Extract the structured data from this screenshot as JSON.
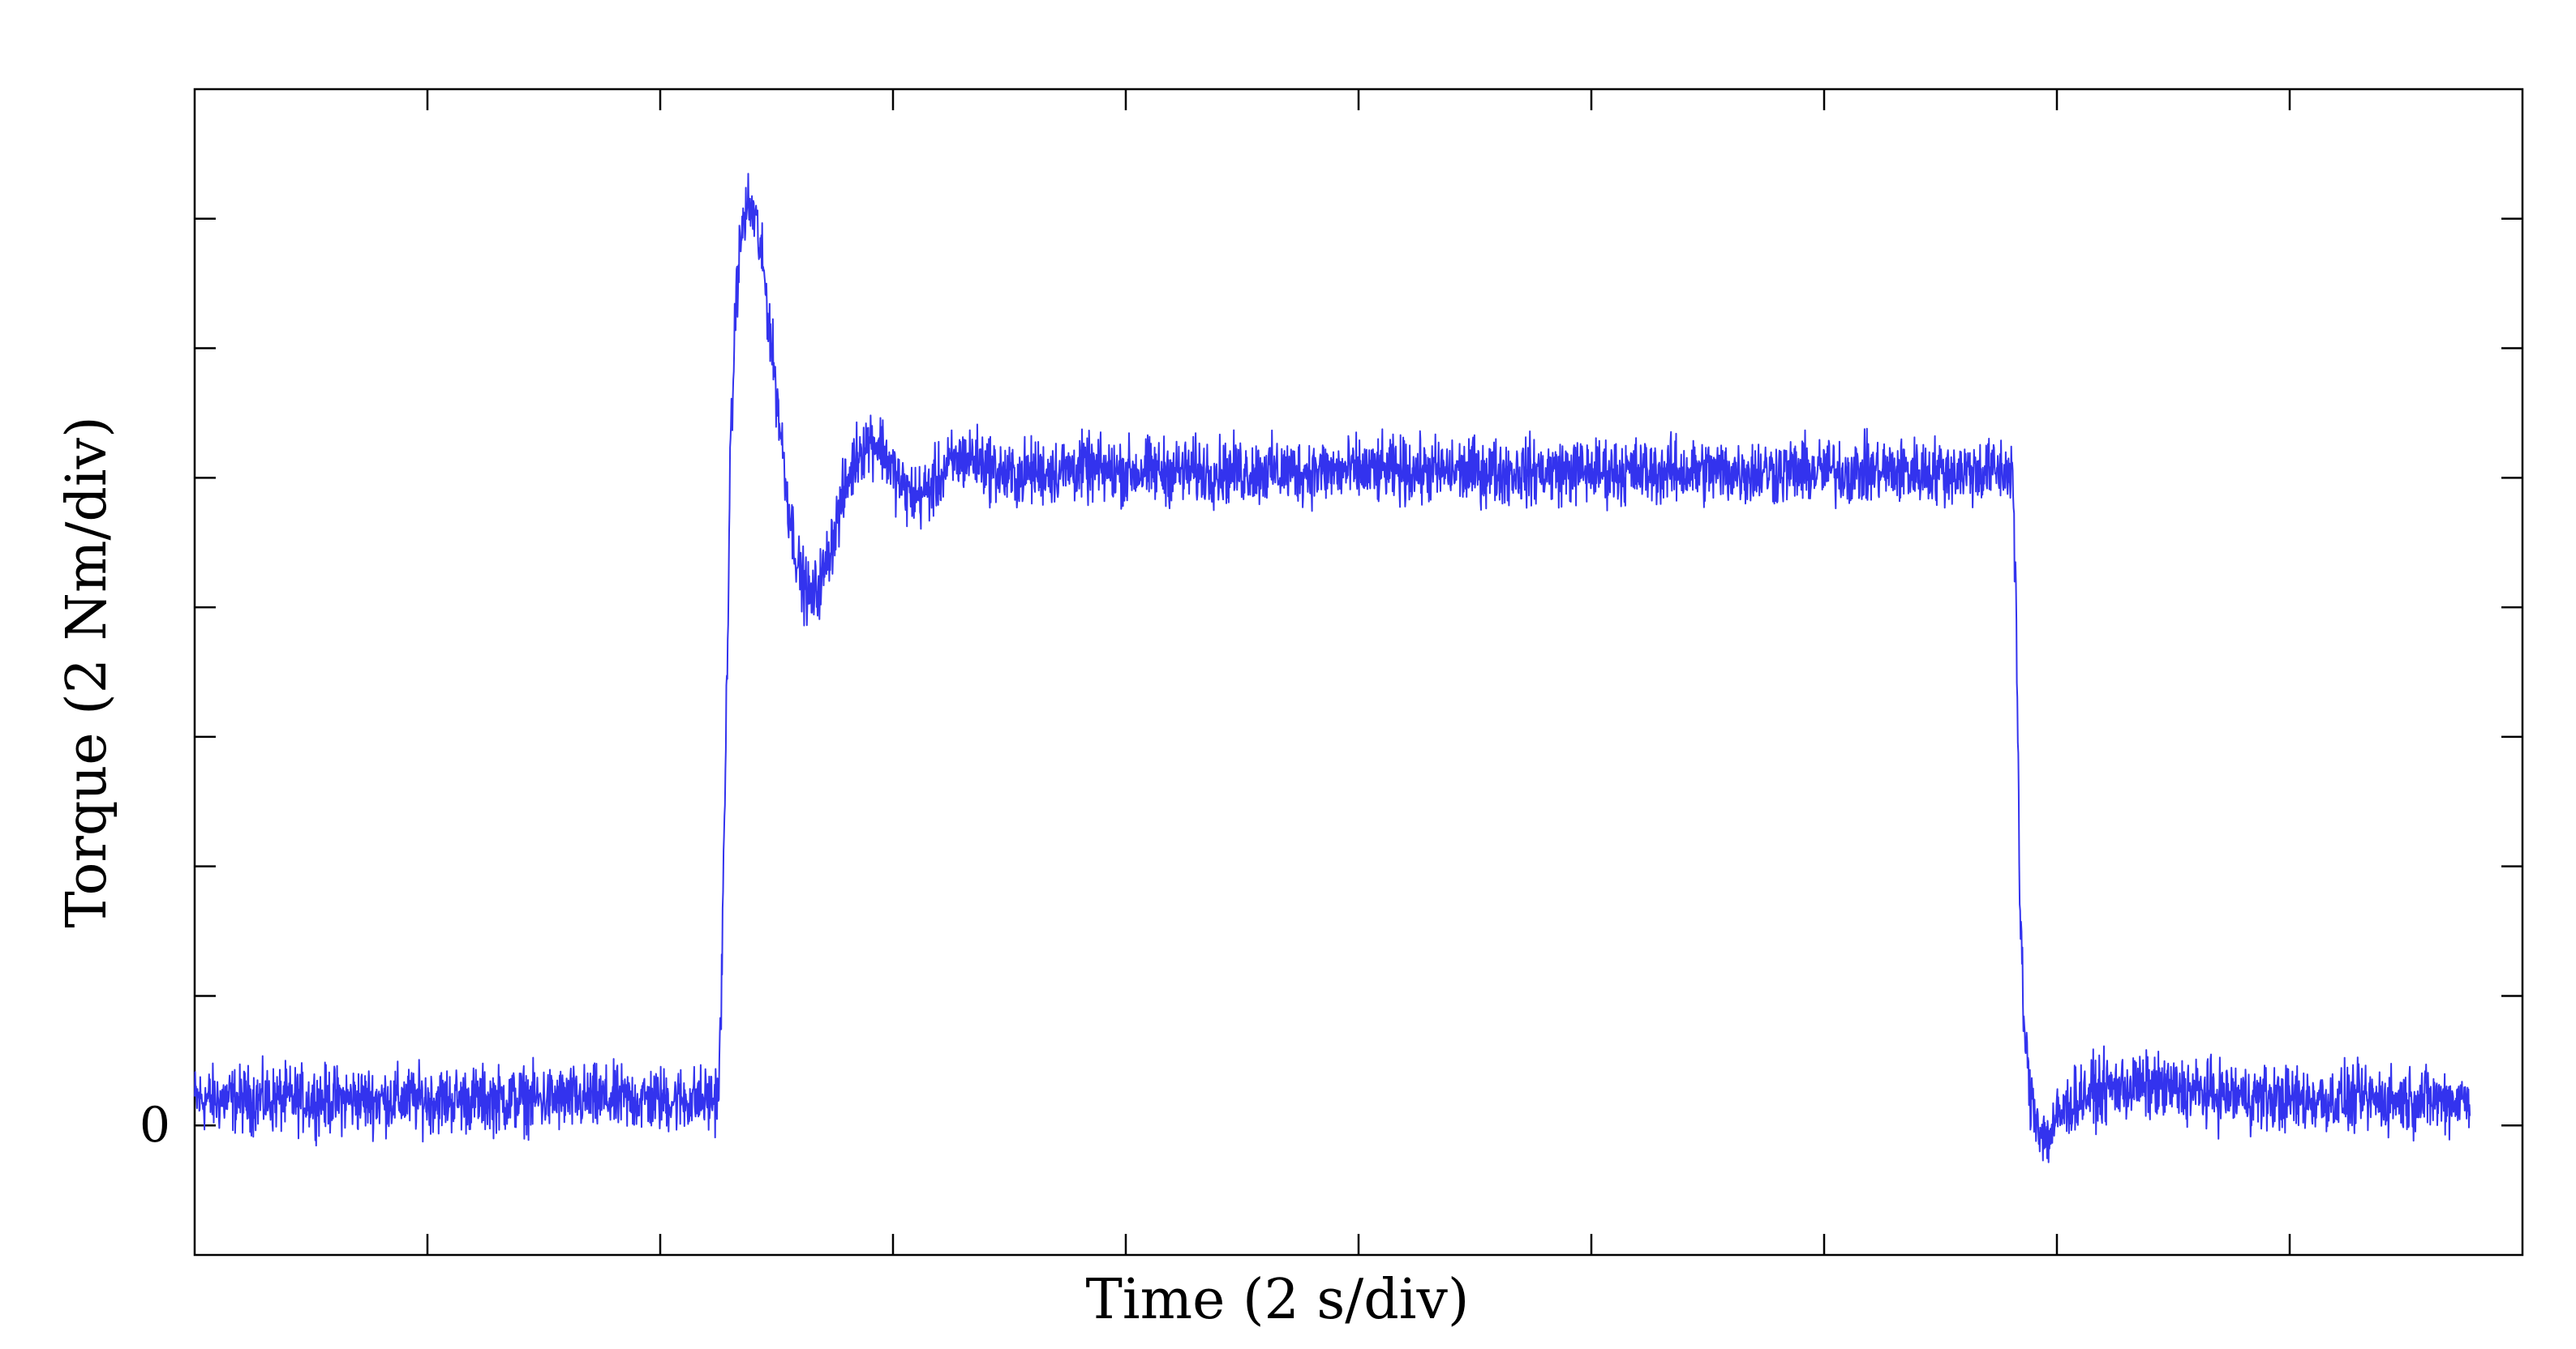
{
  "chart_data": {
    "type": "line",
    "title": "",
    "xlabel": "Time (2 s/div)",
    "ylabel": "Torque (2 Nm/div)",
    "xlim": [
      0,
      20
    ],
    "ylim": [
      -2,
      16
    ],
    "x_divisions": 10,
    "y_divisions": 9,
    "y_tick_labels": [
      {
        "value": 0,
        "label": "0"
      }
    ],
    "grid": false,
    "legend": "none",
    "series": [
      {
        "color": "#3333ee",
        "x": [
          0.0,
          0.5,
          1.0,
          2.0,
          3.0,
          4.0,
          4.45,
          4.5,
          4.52,
          4.56,
          4.6,
          4.65,
          4.7,
          4.75,
          4.82,
          4.9,
          5.0,
          5.1,
          5.2,
          5.3,
          5.4,
          5.5,
          5.6,
          5.7,
          5.8,
          5.9,
          6.0,
          6.1,
          6.2,
          6.3,
          6.4,
          6.5,
          6.6,
          6.7,
          6.8,
          6.9,
          7.0,
          7.2,
          7.4,
          7.6,
          7.8,
          8.0,
          8.4,
          8.8,
          9.2,
          9.6,
          10.0,
          10.5,
          11.0,
          11.5,
          12.0,
          12.5,
          13.0,
          13.5,
          14.0,
          14.5,
          15.0,
          15.3,
          15.4,
          15.55,
          15.62,
          15.65,
          15.68,
          15.72,
          15.76,
          15.8,
          15.85,
          15.9,
          15.95,
          16.0,
          16.1,
          16.2,
          16.4,
          16.6,
          16.8,
          17.0,
          17.3,
          17.6,
          18.0,
          18.4,
          18.8,
          19.2,
          19.55
        ],
        "y": [
          0.4,
          0.4,
          0.4,
          0.4,
          0.4,
          0.4,
          0.4,
          0.5,
          1.5,
          5.5,
          10.0,
          12.8,
          13.8,
          14.2,
          14.0,
          13.0,
          11.3,
          9.6,
          8.5,
          8.1,
          8.5,
          9.2,
          9.9,
          10.4,
          10.6,
          10.5,
          10.1,
          9.8,
          9.7,
          9.8,
          10.0,
          10.2,
          10.3,
          10.3,
          10.2,
          10.1,
          10.0,
          10.1,
          10.1,
          10.15,
          10.1,
          10.1,
          10.1,
          10.1,
          10.1,
          10.1,
          10.1,
          10.1,
          10.1,
          10.1,
          10.1,
          10.1,
          10.1,
          10.1,
          10.1,
          10.1,
          10.1,
          10.1,
          10.1,
          10.1,
          10.1,
          8.0,
          3.5,
          1.5,
          0.6,
          0.3,
          0.0,
          -0.2,
          -0.1,
          0.1,
          0.3,
          0.45,
          0.55,
          0.6,
          0.6,
          0.55,
          0.5,
          0.45,
          0.4,
          0.4,
          0.4,
          0.4,
          0.4
        ]
      }
    ]
  }
}
